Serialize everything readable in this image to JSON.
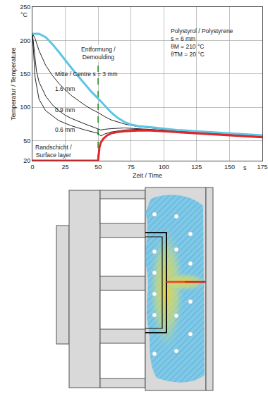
{
  "chart_data": {
    "type": "line",
    "x_label": "Zeit / Time",
    "y_label": "Temperatur / Temperature",
    "xlim": [
      0,
      175
    ],
    "xticks": [
      0,
      25,
      50,
      75,
      100,
      125,
      150,
      175
    ],
    "ylim": [
      20,
      250
    ],
    "yticks": [
      20,
      50,
      100,
      150,
      200,
      250
    ],
    "grid": true,
    "annotations": [
      {
        "text": "°C"
      },
      {
        "text": "s"
      },
      {
        "text": "Polystyrol / Polystyrene"
      },
      {
        "text": "s = 6 mm"
      },
      {
        "text": "ϑM = 210 °C"
      },
      {
        "text": "ϑTM = 20 °C"
      }
    ],
    "series": [
      {
        "name": "Entformung / Demoulding",
        "color": "#3a9a3a",
        "line_style": "dashed",
        "x": [
          50,
          50
        ],
        "values": [
          20,
          165
        ]
      },
      {
        "name": "1.6 mm",
        "color": "#222222",
        "line_style": "solid",
        "x": [
          0,
          2,
          5,
          10,
          15,
          20,
          25,
          30,
          35,
          40,
          45,
          50,
          55,
          60,
          70,
          80,
          100,
          125,
          150,
          175
        ],
        "values": [
          210,
          203,
          185,
          163,
          148,
          136,
          126,
          117,
          110,
          103,
          97,
          92,
          86,
          81,
          75,
          71,
          67,
          63,
          60,
          57
        ]
      },
      {
        "name": "0.9 mm",
        "color": "#222222",
        "line_style": "solid",
        "x": [
          0,
          1,
          3,
          5,
          10,
          15,
          20,
          25,
          30,
          40,
          50,
          52,
          55,
          60,
          70,
          80,
          100,
          125,
          150,
          175
        ],
        "values": [
          210,
          190,
          155,
          138,
          117,
          104,
          95,
          88,
          83,
          75,
          68,
          66,
          67,
          68,
          69,
          68,
          66,
          63,
          60,
          57
        ]
      },
      {
        "name": "0.6 mm",
        "color": "#222222",
        "line_style": "solid",
        "x": [
          0,
          1,
          2,
          5,
          10,
          20,
          30,
          40,
          50,
          52,
          55,
          60,
          70,
          80,
          100,
          125,
          150,
          175
        ],
        "values": [
          210,
          175,
          145,
          112,
          95,
          80,
          72,
          66,
          61,
          57,
          60,
          63,
          66,
          67,
          65,
          62,
          59,
          56
        ]
      },
      {
        "name": "Mitte / Centre s = 3 mm",
        "color": "#5cc6e6",
        "line_style": "solid",
        "x": [
          0,
          5,
          10,
          15,
          20,
          25,
          30,
          35,
          40,
          45,
          50,
          55,
          60,
          65,
          70,
          75,
          80,
          90,
          100,
          110,
          125,
          150,
          175
        ],
        "values": [
          210,
          210,
          205,
          195,
          183,
          170,
          158,
          146,
          134,
          123,
          113,
          102,
          92,
          84,
          78,
          74,
          72,
          70,
          68,
          66,
          64,
          61,
          58
        ]
      },
      {
        "name": "Randschicht / Surface layer",
        "color": "#e0262a",
        "line_style": "solid",
        "x": [
          0,
          50,
          50.5,
          51,
          52,
          54,
          57,
          60,
          65,
          70,
          80,
          90,
          100,
          125,
          150,
          175
        ],
        "values": [
          20,
          20,
          30,
          40,
          47,
          53,
          58,
          61,
          63,
          64,
          65,
          65,
          64,
          61,
          58,
          55
        ]
      }
    ]
  }
}
